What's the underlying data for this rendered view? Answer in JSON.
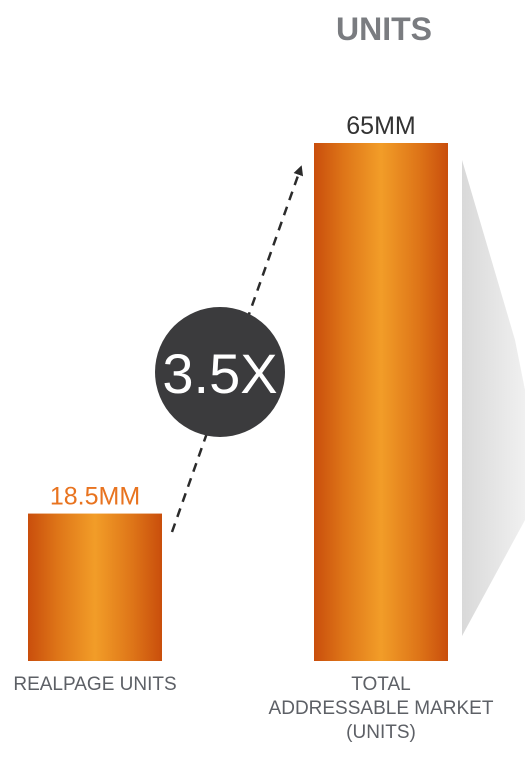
{
  "chart_data": {
    "type": "bar",
    "title": "UNITS",
    "categories": [
      "REALPAGE UNITS",
      "TOTAL ADDRESSABLE MARKET (UNITS)"
    ],
    "category_lines": [
      [
        "REALPAGE UNITS"
      ],
      [
        "TOTAL",
        "ADDRESSABLE MARKET",
        "(UNITS)"
      ]
    ],
    "values": [
      18.5,
      65
    ],
    "value_labels": [
      "18.5MM",
      "65MM"
    ],
    "unit": "MM",
    "annotation": "3.5X",
    "ylim": [
      0,
      65
    ],
    "grid": false,
    "legend": "none",
    "colors": {
      "bar_edge": "#c94e0c",
      "bar_mid": "#f29d28",
      "label_highlight": "#e8731f",
      "label_default": "#333333",
      "title": "#7a7c80",
      "category_label": "#5d6066",
      "circle": "#3b3b3d",
      "arrow": "#2b2b2b",
      "shadow": "#e6e6e6"
    }
  }
}
